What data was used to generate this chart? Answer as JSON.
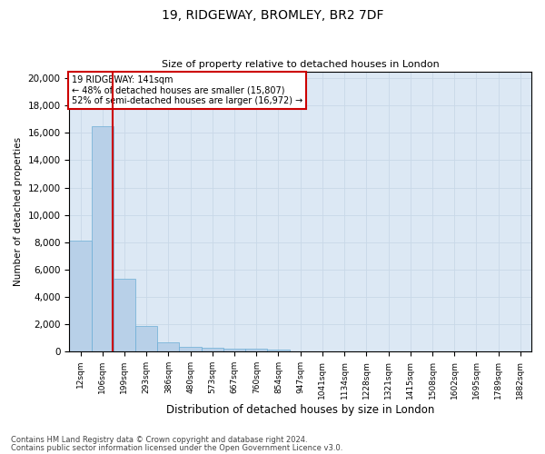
{
  "title1": "19, RIDGEWAY, BROMLEY, BR2 7DF",
  "title2": "Size of property relative to detached houses in London",
  "xlabel": "Distribution of detached houses by size in London",
  "ylabel": "Number of detached properties",
  "categories": [
    "12sqm",
    "106sqm",
    "199sqm",
    "293sqm",
    "386sqm",
    "480sqm",
    "573sqm",
    "667sqm",
    "760sqm",
    "854sqm",
    "947sqm",
    "1041sqm",
    "1134sqm",
    "1228sqm",
    "1321sqm",
    "1415sqm",
    "1508sqm",
    "1602sqm",
    "1695sqm",
    "1789sqm",
    "1882sqm"
  ],
  "bar_heights": [
    8100,
    16500,
    5300,
    1850,
    680,
    370,
    270,
    200,
    190,
    170,
    0,
    0,
    0,
    0,
    0,
    0,
    0,
    0,
    0,
    0,
    0
  ],
  "bar_color": "#b8d0e8",
  "bar_edge_color": "#6baed6",
  "grid_color": "#c8d8e8",
  "background_color": "#dce8f4",
  "annotation_title": "19 RIDGEWAY: 141sqm",
  "annotation_line1": "← 48% of detached houses are smaller (15,807)",
  "annotation_line2": "52% of semi-detached houses are larger (16,972) →",
  "annotation_box_color": "#ffffff",
  "annotation_border_color": "#cc0000",
  "redline_color": "#cc0000",
  "ylim": [
    0,
    20500
  ],
  "yticks": [
    0,
    2000,
    4000,
    6000,
    8000,
    10000,
    12000,
    14000,
    16000,
    18000,
    20000
  ],
  "footer1": "Contains HM Land Registry data © Crown copyright and database right 2024.",
  "footer2": "Contains public sector information licensed under the Open Government Licence v3.0."
}
